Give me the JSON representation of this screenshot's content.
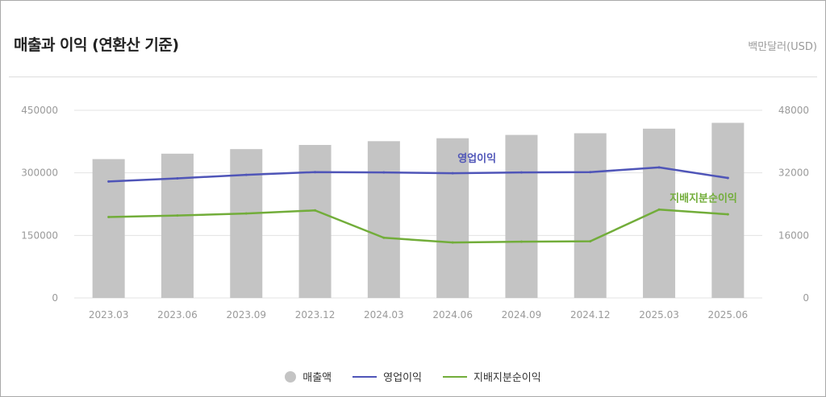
{
  "header": {
    "title": "매출과 이익 (연환산 기준)",
    "unit": "백만달러(USD)"
  },
  "legend": [
    {
      "label": "매출액",
      "color": "#c4c4c4",
      "marker": "circle"
    },
    {
      "label": "영업이익",
      "color": "#4f55b8",
      "marker": "line"
    },
    {
      "label": "지배지분순이익",
      "color": "#72ad3a",
      "marker": "line"
    }
  ],
  "chart_data": {
    "type": "bar",
    "categories": [
      "2023.03",
      "2023.06",
      "2023.09",
      "2023.12",
      "2024.03",
      "2024.06",
      "2024.09",
      "2024.12",
      "2025.03",
      "2025.06"
    ],
    "y_left": {
      "ticks": [
        "450000",
        "300000",
        "150000",
        "0"
      ],
      "ylim": [
        0,
        450000
      ]
    },
    "y_right": {
      "ticks": [
        "48000",
        "32000",
        "16000",
        "0"
      ],
      "ylim": [
        0,
        48000
      ]
    },
    "series": [
      {
        "name": "매출액",
        "type": "bar",
        "axis": "left",
        "color": "#c4c4c4",
        "values": [
          333000,
          346000,
          357000,
          367000,
          376000,
          383000,
          391000,
          395000,
          406000,
          420000
        ]
      },
      {
        "name": "영업이익",
        "type": "line",
        "axis": "right",
        "color": "#4f55b8",
        "label": "영업이익",
        "values": [
          29800,
          30600,
          31500,
          32200,
          32100,
          31900,
          32100,
          32200,
          33400,
          30700
        ]
      },
      {
        "name": "지배지분순이익",
        "type": "line",
        "axis": "right",
        "color": "#72ad3a",
        "label": "지배지분순이익",
        "values": [
          20700,
          21100,
          21600,
          22400,
          15400,
          14200,
          14400,
          14500,
          22600,
          21400
        ]
      }
    ],
    "grid": true,
    "legend_position": "bottom"
  }
}
